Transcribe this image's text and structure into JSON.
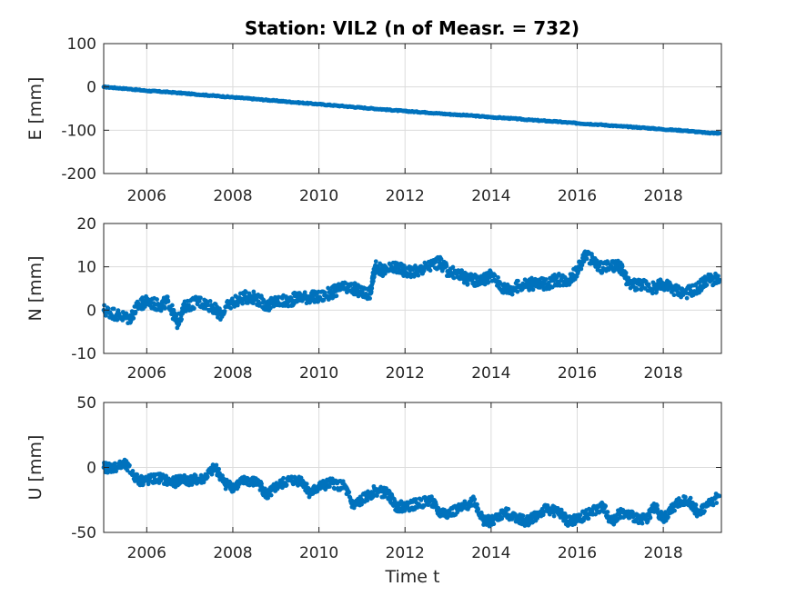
{
  "title": "Station: VIL2 (n of Measr. = 732)",
  "colors": {
    "marker": "#0072BD",
    "grid": "#dcdcdc",
    "axis": "#262626"
  },
  "chart_data": [
    {
      "type": "scatter",
      "ylabel": "E [mm]",
      "xlabel": "",
      "xlim": [
        2005.0,
        2019.35
      ],
      "ylim": [
        -200,
        100
      ],
      "xticks": [
        2006,
        2008,
        2010,
        2012,
        2014,
        2016,
        2018
      ],
      "yticks": [
        -200,
        -100,
        0,
        100
      ],
      "grid": true,
      "series": [
        {
          "x": [
            2005.0,
            2005.5,
            2006.0,
            2006.5,
            2007.0,
            2007.5,
            2008.0,
            2008.5,
            2009.0,
            2009.5,
            2010.0,
            2010.5,
            2011.0,
            2011.5,
            2012.0,
            2012.5,
            2013.0,
            2013.5,
            2014.0,
            2014.5,
            2015.0,
            2015.5,
            2016.0,
            2016.5,
            2017.0,
            2017.5,
            2018.0,
            2018.5,
            2019.0,
            2019.3
          ],
          "y": [
            0,
            -4,
            -9,
            -12,
            -16,
            -20,
            -24,
            -28,
            -32,
            -36,
            -40,
            -44,
            -48,
            -52,
            -56,
            -59,
            -63,
            -66,
            -70,
            -73,
            -77,
            -80,
            -84,
            -87,
            -91,
            -94,
            -98,
            -101,
            -106,
            -107
          ]
        }
      ]
    },
    {
      "type": "scatter",
      "ylabel": "N [mm]",
      "xlabel": "",
      "xlim": [
        2005.0,
        2019.35
      ],
      "ylim": [
        -10,
        20
      ],
      "xticks": [
        2006,
        2008,
        2010,
        2012,
        2014,
        2016,
        2018
      ],
      "yticks": [
        -10,
        0,
        10,
        20
      ],
      "grid": true,
      "series": [
        {
          "x": [
            2005.0,
            2005.3,
            2005.6,
            2005.8,
            2006.0,
            2006.3,
            2006.5,
            2006.7,
            2006.9,
            2007.2,
            2007.5,
            2007.7,
            2008.0,
            2008.3,
            2008.5,
            2008.8,
            2009.0,
            2009.3,
            2009.5,
            2009.8,
            2010.0,
            2010.3,
            2010.5,
            2010.8,
            2011.0,
            2011.2,
            2011.3,
            2011.5,
            2011.8,
            2012.0,
            2012.3,
            2012.5,
            2012.8,
            2013.0,
            2013.3,
            2013.5,
            2013.8,
            2014.0,
            2014.3,
            2014.5,
            2014.8,
            2015.0,
            2015.3,
            2015.5,
            2015.8,
            2016.0,
            2016.2,
            2016.5,
            2016.8,
            2017.0,
            2017.2,
            2017.5,
            2017.8,
            2018.0,
            2018.2,
            2018.5,
            2018.8,
            2019.0,
            2019.3
          ],
          "y": [
            0,
            -1,
            -2,
            1,
            2,
            1,
            2,
            -3,
            1,
            2,
            1,
            -1,
            2,
            3,
            3,
            1,
            2,
            2,
            3,
            3,
            3,
            4,
            5,
            5,
            4,
            4,
            10,
            9,
            10,
            9,
            9,
            10,
            11,
            9,
            8,
            7,
            7,
            8,
            5,
            5,
            6,
            6,
            6,
            7,
            7,
            9,
            13,
            10,
            10,
            10,
            6,
            6,
            5,
            6,
            5,
            4,
            5,
            7,
            7
          ]
        }
      ]
    },
    {
      "type": "scatter",
      "ylabel": "U [mm]",
      "xlabel": "Time t",
      "xlim": [
        2005.0,
        2019.35
      ],
      "ylim": [
        -50,
        50
      ],
      "xticks": [
        2006,
        2008,
        2010,
        2012,
        2014,
        2016,
        2018
      ],
      "yticks": [
        -50,
        0,
        50
      ],
      "grid": true,
      "series": [
        {
          "x": [
            2005.0,
            2005.2,
            2005.5,
            2005.8,
            2006.0,
            2006.3,
            2006.6,
            2006.8,
            2007.0,
            2007.3,
            2007.6,
            2007.8,
            2008.0,
            2008.3,
            2008.6,
            2008.8,
            2009.0,
            2009.3,
            2009.6,
            2009.8,
            2010.0,
            2010.3,
            2010.6,
            2010.8,
            2011.0,
            2011.3,
            2011.6,
            2011.8,
            2012.0,
            2012.3,
            2012.6,
            2012.8,
            2013.0,
            2013.3,
            2013.6,
            2013.8,
            2014.0,
            2014.3,
            2014.6,
            2014.8,
            2015.0,
            2015.3,
            2015.6,
            2015.8,
            2016.0,
            2016.3,
            2016.6,
            2016.8,
            2017.0,
            2017.3,
            2017.6,
            2017.8,
            2018.0,
            2018.3,
            2018.6,
            2018.8,
            2019.0,
            2019.3
          ],
          "y": [
            0,
            0,
            2,
            -10,
            -10,
            -8,
            -12,
            -9,
            -10,
            -9,
            0,
            -12,
            -15,
            -10,
            -12,
            -22,
            -15,
            -10,
            -10,
            -20,
            -15,
            -12,
            -15,
            -30,
            -25,
            -18,
            -20,
            -30,
            -30,
            -28,
            -25,
            -35,
            -35,
            -32,
            -25,
            -40,
            -42,
            -35,
            -38,
            -42,
            -38,
            -32,
            -35,
            -42,
            -40,
            -35,
            -30,
            -42,
            -35,
            -38,
            -40,
            -30,
            -40,
            -28,
            -25,
            -35,
            -30,
            -22
          ]
        }
      ]
    }
  ]
}
